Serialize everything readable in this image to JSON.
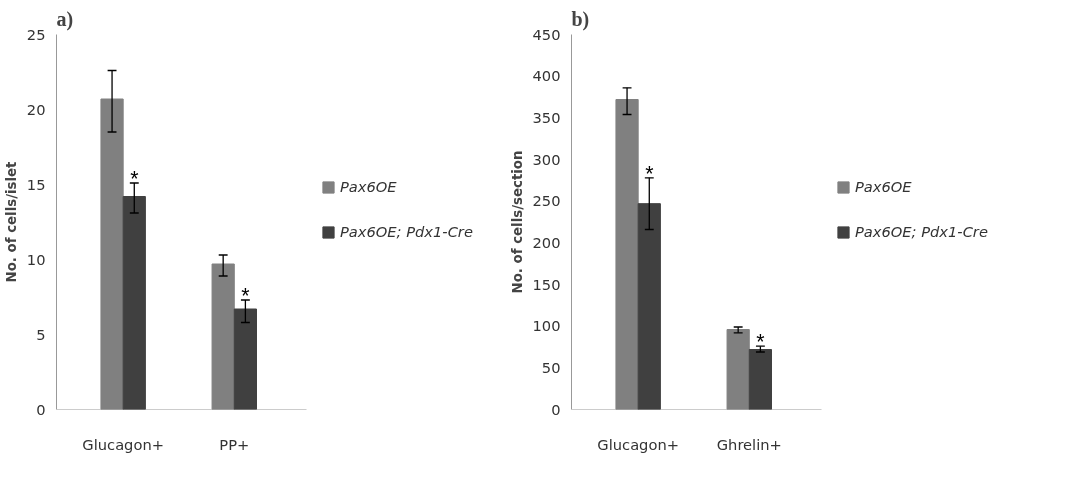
{
  "chart_data": [
    {
      "type": "bar",
      "title": "a)",
      "ylabel": "No. of cells/islet",
      "categories": [
        "Glucagon+",
        "PP+"
      ],
      "ylim": [
        0,
        25
      ],
      "yticks": [
        0,
        5,
        10,
        15,
        20,
        25
      ],
      "grid": false,
      "legend": "right",
      "series": [
        {
          "name": "Pax6OE",
          "color": "#808080",
          "values": [
            20.7,
            9.7
          ],
          "errors": [
            [
              18.5,
              22.6
            ],
            [
              8.9,
              10.3
            ]
          ]
        },
        {
          "name": "Pax6OE; Pdx1-Cre",
          "color": "#404040",
          "values": [
            14.2,
            6.7
          ],
          "errors": [
            [
              13.1,
              15.1
            ],
            [
              5.8,
              7.3
            ]
          ]
        }
      ],
      "annotations": [
        {
          "text": "*",
          "x": "Glucagon+",
          "y": 15.1
        },
        {
          "text": "*",
          "x": "PP+",
          "y": 7.3
        }
      ]
    },
    {
      "type": "bar",
      "title": "b)",
      "ylabel": "No. of cells/section",
      "categories": [
        "Glucagon+",
        "Ghrelin+"
      ],
      "ylim": [
        0,
        450
      ],
      "yticks": [
        0,
        50,
        100,
        150,
        200,
        250,
        300,
        350,
        400,
        450
      ],
      "grid": false,
      "legend": "right",
      "series": [
        {
          "name": "Pax6OE",
          "color": "#808080",
          "values": [
            372,
            96
          ],
          "errors": [
            [
              354,
              386
            ],
            [
              92,
              99
            ]
          ]
        },
        {
          "name": "Pax6OE; Pdx1-Cre",
          "color": "#404040",
          "values": [
            247,
            72
          ],
          "errors": [
            [
              216,
              278
            ],
            [
              69,
              76
            ]
          ]
        }
      ],
      "annotations": [
        {
          "text": "*",
          "x": "Glucagon+",
          "y": 278
        },
        {
          "text": "*",
          "x": "Ghrelin+",
          "y": 76
        }
      ]
    }
  ]
}
